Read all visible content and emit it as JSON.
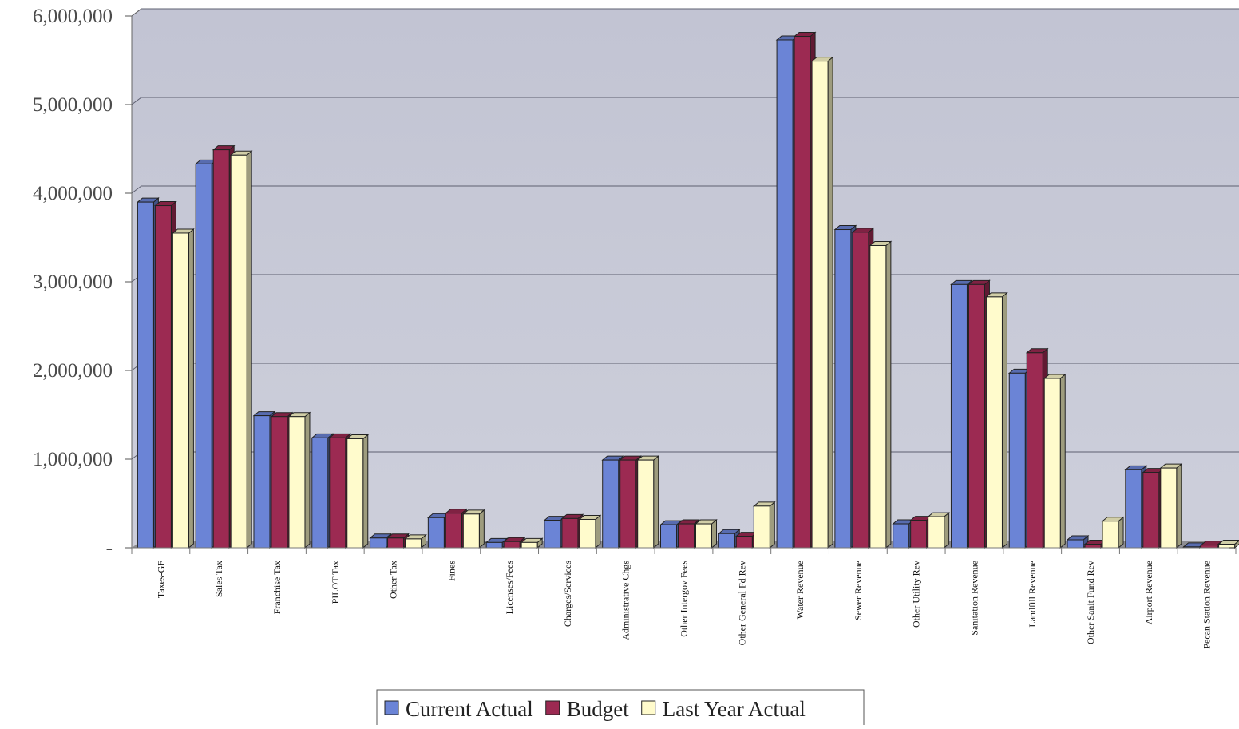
{
  "chart_data": {
    "type": "bar",
    "categories": [
      "Taxes-GF",
      "Sales Tax",
      "Franchise Tax",
      "PILOT Tax",
      "Other Tax",
      "Fines",
      "Licenses/Fees",
      "Charges/Services",
      "Administrative Chgs",
      "Other Intergov Fees",
      "Other General Fd Rev",
      "Water Revenue",
      "Sewer Revenue",
      "Other Utility Rev",
      "Sanitation Revenue",
      "Landfill Revenue",
      "Other Sanit Fund Rev",
      "Airport Revenue",
      "Pecan Station Revenue"
    ],
    "series": [
      {
        "name": "Current Actual",
        "color": "#6b84d6",
        "values": [
          3900000,
          4330000,
          1490000,
          1240000,
          110000,
          340000,
          60000,
          310000,
          990000,
          260000,
          160000,
          5730000,
          3590000,
          270000,
          2970000,
          1970000,
          90000,
          880000,
          10000
        ]
      },
      {
        "name": "Budget",
        "color": "#9c2a52",
        "values": [
          3860000,
          4490000,
          1480000,
          1240000,
          110000,
          390000,
          70000,
          330000,
          990000,
          270000,
          130000,
          5770000,
          3560000,
          310000,
          2970000,
          2200000,
          40000,
          850000,
          30000
        ]
      },
      {
        "name": "Last Year Actual",
        "color": "#fffbcc",
        "values": [
          3550000,
          4430000,
          1480000,
          1230000,
          100000,
          380000,
          60000,
          320000,
          990000,
          270000,
          470000,
          5490000,
          3410000,
          350000,
          2830000,
          1910000,
          300000,
          900000,
          40000
        ]
      }
    ],
    "yticks": [
      "-",
      "1,000,000",
      "2,000,000",
      "3,000,000",
      "4,000,000",
      "5,000,000",
      "6,000,000"
    ],
    "ylim": [
      0,
      6000000
    ],
    "grid": true,
    "legend": "bottom"
  }
}
